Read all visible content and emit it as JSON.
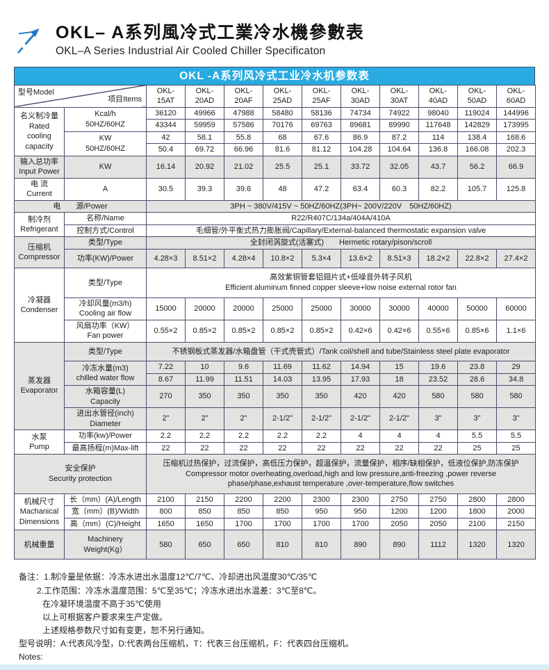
{
  "header": {
    "title_zh": "OKL– A系列風冷式工業冷水機參數表",
    "title_en": "OKL–A Series Industrial Air Cooled Chiller Specificaton",
    "logo_icon": "arrow-up-right-icon"
  },
  "colors": {
    "header_blue": "#29abe2",
    "row_gray": "#e4e3e1",
    "border": "#4a4a68",
    "arrow_blue": "#1e78c8",
    "bottom_strip": "#d9edf6",
    "caption_text": "#ffffff"
  },
  "table": {
    "caption": "OKL -A系列风冷式工业冷水机参数表",
    "corner": {
      "left": "型号Model",
      "right": "项目Items"
    },
    "models": [
      "OKL-\n15AT",
      "OKL-\n20AD",
      "OKL-\n20AF",
      "OKL-\n25AD",
      "OKL-\n25AF",
      "OKL-\n30AD",
      "OKL-\n30AT",
      "OKL-\n40AD",
      "OKL-\n50AD",
      "OKL-\n60AD"
    ],
    "rows": [
      {
        "cls": "",
        "cells": [
          {
            "diag": true,
            "cs": 2
          },
          {
            "vals": [
              "OKL-\n15AT",
              "OKL-\n20AD",
              "OKL-\n20AF",
              "OKL-\n25AD",
              "OKL-\n25AF",
              "OKL-\n30AD",
              "OKL-\n30AT",
              "OKL-\n40AD",
              "OKL-\n50AD",
              "OKL-\n60AD"
            ],
            "cls": "model"
          }
        ]
      },
      {
        "cls": "",
        "cells": [
          {
            "t": "名义制冷量\nRated\ncooling\ncapacity",
            "rs": 4,
            "cls": "lbl"
          },
          {
            "t": "Kcal/h\n50HZ/60HZ",
            "rs": 2
          },
          {
            "vals": [
              "36120",
              "49966",
              "47988",
              "58480",
              "58136",
              "74734",
              "74922",
              "98040",
              "119024",
              "144996"
            ]
          }
        ]
      },
      {
        "cls": "",
        "cells": [
          {
            "vals": [
              "43344",
              "59959",
              "57586",
              "70176",
              "69763",
              "89681",
              "89990",
              "117648",
              "142829",
              "173995"
            ]
          }
        ]
      },
      {
        "cls": "",
        "cells": [
          {
            "t": "KW\n50HZ/60HZ",
            "rs": 2
          },
          {
            "vals": [
              "42",
              "58.1",
              "55.8",
              "68",
              "67.6",
              "86.9",
              "87.2",
              "114",
              "138.4",
              "168.6"
            ]
          }
        ]
      },
      {
        "cls": "",
        "cells": [
          {
            "vals": [
              "50.4",
              "69.72",
              "66.96",
              "81.6",
              "81.12",
              "104.28",
              "104.64",
              "136.8",
              "166.08",
              "202.3"
            ]
          }
        ]
      },
      {
        "cls": "gray",
        "cells": [
          {
            "t": "输入总功率\nInput Power",
            "cls": "lbl"
          },
          {
            "t": "KW"
          },
          {
            "vals": [
              "16.14",
              "20.92",
              "21.02",
              "25.5",
              "25.1",
              "33.72",
              "32.05",
              "43.7",
              "56.2",
              "66.9"
            ]
          }
        ]
      },
      {
        "cls": "",
        "cells": [
          {
            "t": "电 流\nCurrent",
            "cls": "lbl"
          },
          {
            "t": "A"
          },
          {
            "vals": [
              "30.5",
              "39.3",
              "39.6",
              "48",
              "47.2",
              "63.4",
              "60.3",
              "82.2",
              "105.7",
              "125.8"
            ]
          }
        ]
      },
      {
        "cls": "gray",
        "cells": [
          {
            "t": "电　　源/Power",
            "cs": 2,
            "cls": "lbl"
          },
          {
            "t": "3PH ~ 380V/415V ~ 50HZ/60HZ(3PH~ 200V/220V　50HZ/60HZ)",
            "cs": 10,
            "cls": "wide"
          }
        ]
      },
      {
        "cls": "",
        "cells": [
          {
            "t": "制冷剂\nRefrigerant",
            "rs": 2,
            "cls": "lbl"
          },
          {
            "t": "名称/Name"
          },
          {
            "t": "R22/R407C/134a/404A/410A",
            "cs": 10,
            "cls": "wide"
          }
        ]
      },
      {
        "cls": "",
        "cells": [
          {
            "t": "控制方式/Control"
          },
          {
            "t": "毛细管/外平衡式热力膨胀阀/Capillary/External-balanced thermostatic expansion valve",
            "cs": 10,
            "cls": "wide"
          }
        ]
      },
      {
        "cls": "gray",
        "cells": [
          {
            "t": "压缩机\nCompressor",
            "rs": 2,
            "cls": "lbl"
          },
          {
            "t": "类型/Type"
          },
          {
            "t": "全封闭涡旋式(活塞式)　　Hermetic rotary/pison/scroll",
            "cs": 10,
            "cls": "wide"
          }
        ]
      },
      {
        "cls": "gray pad",
        "cells": [
          {
            "t": "功率(KW)/Power"
          },
          {
            "vals": [
              "4.28×3",
              "8.51×2",
              "4.28×4",
              "10.8×2",
              "5.3×4",
              "13.6×2",
              "8.51×3",
              "18.2×2",
              "22.8×2",
              "27.4×2"
            ]
          }
        ]
      },
      {
        "cls": "pad",
        "cells": [
          {
            "t": "冷凝器\nCondenser",
            "rs": 3,
            "cls": "lbl"
          },
          {
            "t": "类型/Type"
          },
          {
            "t": "高效紫铜管套铝翅片式+低噪音外转子风机\nEfficient aluminum finned copper sleeve+low noise external rotor fan",
            "cs": 10,
            "cls": "wide"
          }
        ]
      },
      {
        "cls": "",
        "cells": [
          {
            "t": "冷却风量(m3/h)\nCooling air flow"
          },
          {
            "vals": [
              "15000",
              "20000",
              "20000",
              "25000",
              "25000",
              "30000",
              "30000",
              "40000",
              "50000",
              "60000"
            ]
          }
        ]
      },
      {
        "cls": "",
        "cells": [
          {
            "t": "风扇功率（KW）\nFan power"
          },
          {
            "vals": [
              "0.55×2",
              "0.85×2",
              "0.85×2",
              "0.85×2",
              "0.85×2",
              "0.42×6",
              "0.42×6",
              "0.55×6",
              "0.85×6",
              "1.1×6"
            ]
          }
        ]
      },
      {
        "cls": "gray pad",
        "cells": [
          {
            "t": "蒸发器\nEvaporator",
            "rs": 5,
            "cls": "lbl"
          },
          {
            "t": "类型/Type"
          },
          {
            "t": "不锈钢板式蒸发器/水箱盘管（干式壳管式）/Tank coil/shell and tube/Stainless steel plate evaporator",
            "cs": 10,
            "cls": "wide"
          }
        ]
      },
      {
        "cls": "gray",
        "cells": [
          {
            "t": "冷冻水量(m3)\nchilled water flow",
            "rs": 2
          },
          {
            "vals": [
              "7.22",
              "10",
              "9.6",
              "11.69",
              "11.62",
              "14.94",
              "15",
              "19.6",
              "23.8",
              "29"
            ]
          }
        ]
      },
      {
        "cls": "gray",
        "cells": [
          {
            "vals": [
              "8.67",
              "11.99",
              "11.51",
              "14.03",
              "13.95",
              "17.93",
              "18",
              "23.52",
              "28.6",
              "34.8"
            ]
          }
        ]
      },
      {
        "cls": "gray",
        "cells": [
          {
            "t": "水箱容量(L)\nCapacity"
          },
          {
            "vals": [
              "270",
              "350",
              "350",
              "350",
              "350",
              "420",
              "420",
              "580",
              "580",
              "580"
            ]
          }
        ]
      },
      {
        "cls": "gray",
        "cells": [
          {
            "t": "进出水管径(inch)\nDiameter"
          },
          {
            "vals": [
              "2\"",
              "2\"",
              "2\"",
              "2-1/2\"",
              "2-1/2\"",
              "2-1/2\"",
              "2-1/2\"",
              "3\"",
              "3\"",
              "3\""
            ]
          }
        ]
      },
      {
        "cls": "",
        "cells": [
          {
            "t": "水泵\nPump",
            "rs": 2,
            "cls": "lbl"
          },
          {
            "t": "功率(kw)/Power"
          },
          {
            "vals": [
              "2.2",
              "2.2",
              "2.2",
              "2.2",
              "2.2",
              "4",
              "4",
              "4",
              "5.5",
              "5.5"
            ]
          }
        ]
      },
      {
        "cls": "",
        "cells": [
          {
            "t": "最高扬程(m)Max-lift"
          },
          {
            "vals": [
              "22",
              "22",
              "22",
              "22",
              "22",
              "22",
              "22",
              "22",
              "25",
              "25"
            ]
          }
        ]
      },
      {
        "cls": "gray pad",
        "cells": [
          {
            "t": "安全保护\nSecurity protection",
            "cs": 2,
            "cls": "lbl"
          },
          {
            "t": "压缩机过热保护，过流保护，高低压力保护，超温保护，流量保护，相序/缺相保护，低液位保护,防冻保护\nCompressor motor overheating,overload,high and low pressure,anti-freezing ,power reverse\nphase/phase,exhaust temperature ,over-temperature,flow switches",
            "cs": 10,
            "cls": "wide"
          }
        ]
      },
      {
        "cls": "",
        "cells": [
          {
            "t": "机械尺寸\nMachanical\nDimensions",
            "rs": 3,
            "cls": "lbl"
          },
          {
            "t": "长（mm）(A)/Length"
          },
          {
            "vals": [
              "2100",
              "2150",
              "2200",
              "2200",
              "2300",
              "2300",
              "2750",
              "2750",
              "2800",
              "2800"
            ]
          }
        ]
      },
      {
        "cls": "",
        "cells": [
          {
            "t": "宽（mm）(B)/Width"
          },
          {
            "vals": [
              "800",
              "850",
              "850",
              "850",
              "950",
              "950",
              "1200",
              "1200",
              "1800",
              "2000"
            ]
          }
        ]
      },
      {
        "cls": "",
        "cells": [
          {
            "t": "高（mm）(C)/Height"
          },
          {
            "vals": [
              "1650",
              "1650",
              "1700",
              "1700",
              "1700",
              "1700",
              "2050",
              "2050",
              "2100",
              "2150"
            ]
          }
        ]
      },
      {
        "cls": "gray pad",
        "cells": [
          {
            "t": "机械重量",
            "cls": "lbl"
          },
          {
            "t": "Machinery\nWeight(Kg）"
          },
          {
            "vals": [
              "580",
              "650",
              "650",
              "810",
              "810",
              "890",
              "890",
              "1112",
              "1320",
              "1320"
            ]
          }
        ]
      }
    ]
  },
  "notes": {
    "lines": [
      {
        "t": "备注：1.制冷量是依据：冷冻水进出水温度12℃/7℃、冷却进出风温度30℃/35℃",
        "ind": 0
      },
      {
        "t": "2.工作范围：冷冻水温度范围：5℃至35℃；冷冻水进出水温差：3℃至8℃。",
        "ind": 1
      },
      {
        "t": "在冷凝环境温度不高于35℃使用",
        "ind": 2
      },
      {
        "t": "以上可根据客户要求来生产定做。",
        "ind": 2
      },
      {
        "t": "上述规格参数尺寸如有变更，恕不另行通知。",
        "ind": 2
      },
      {
        "t": "型号说明：A:代表风冷型，D:代表两台压缩机，T：代表三台压缩机，F：代表四台压缩机。",
        "ind": 0
      },
      {
        "t": "Notes:",
        "ind": 0
      }
    ]
  }
}
